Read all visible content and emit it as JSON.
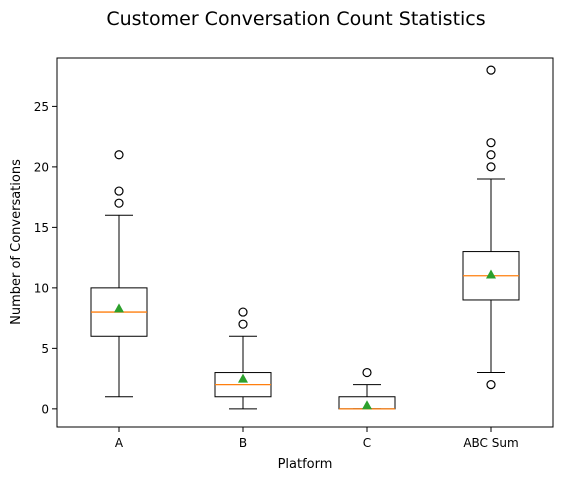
{
  "chart_data": {
    "type": "box",
    "title": "Customer Conversation Count Statistics",
    "xlabel": "Platform",
    "ylabel": "Number of Conversations",
    "ylim": [
      -1.5,
      29
    ],
    "yticks": [
      0,
      5,
      10,
      15,
      20,
      25
    ],
    "grid": false,
    "categories": [
      "A",
      "B",
      "C",
      "ABC Sum"
    ],
    "boxes": [
      {
        "category": "A",
        "whisker_low": 1,
        "q1": 6,
        "median": 8,
        "q3": 10,
        "whisker_high": 16,
        "mean": 8.3,
        "outliers": [
          17,
          18,
          21
        ]
      },
      {
        "category": "B",
        "whisker_low": 0,
        "q1": 1,
        "median": 2,
        "q3": 3,
        "whisker_high": 6,
        "mean": 2.5,
        "outliers": [
          7,
          8
        ]
      },
      {
        "category": "C",
        "whisker_low": 0,
        "q1": 0,
        "median": 0,
        "q3": 1,
        "whisker_high": 2,
        "mean": 0.3,
        "outliers": [
          3
        ]
      },
      {
        "category": "ABC Sum",
        "whisker_low": 3,
        "q1": 9,
        "median": 11,
        "q3": 13,
        "whisker_high": 19,
        "mean": 11.1,
        "outliers": [
          2,
          20,
          21,
          22,
          28
        ]
      }
    ],
    "colors": {
      "box": "#000000",
      "median": "#ff7f0e",
      "mean": "#2ca02c",
      "outlier_edge": "#000000"
    }
  }
}
